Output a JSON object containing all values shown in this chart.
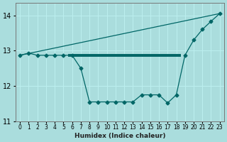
{
  "xlabel": "Humidex (Indice chaleur)",
  "bg_color": "#aadddd",
  "line_color": "#006666",
  "grid_color": "#bbeeee",
  "xlim": [
    -0.5,
    23.5
  ],
  "ylim": [
    11.0,
    14.35
  ],
  "yticks": [
    11,
    12,
    13,
    14
  ],
  "xticks": [
    0,
    1,
    2,
    3,
    4,
    5,
    6,
    7,
    8,
    9,
    10,
    11,
    12,
    13,
    14,
    15,
    16,
    17,
    18,
    19,
    20,
    21,
    22,
    23
  ],
  "upper_line_x": [
    0,
    23
  ],
  "upper_line_y": [
    12.87,
    14.05
  ],
  "lower_line_x": [
    0,
    1,
    2,
    3,
    4,
    5,
    6,
    7,
    8,
    9,
    10,
    11,
    12,
    13,
    14,
    15,
    16,
    17,
    18,
    19,
    20,
    21,
    22,
    23
  ],
  "lower_line_y": [
    12.87,
    12.93,
    12.87,
    12.87,
    12.87,
    12.87,
    12.87,
    12.5,
    11.55,
    11.55,
    11.55,
    11.55,
    11.55,
    11.55,
    11.75,
    11.75,
    11.75,
    11.52,
    11.75,
    12.87,
    13.3,
    13.6,
    13.83,
    14.05
  ],
  "hline_x": [
    5.5,
    18.5
  ],
  "hline_y": [
    12.87,
    12.87
  ],
  "markersize": 2.5
}
